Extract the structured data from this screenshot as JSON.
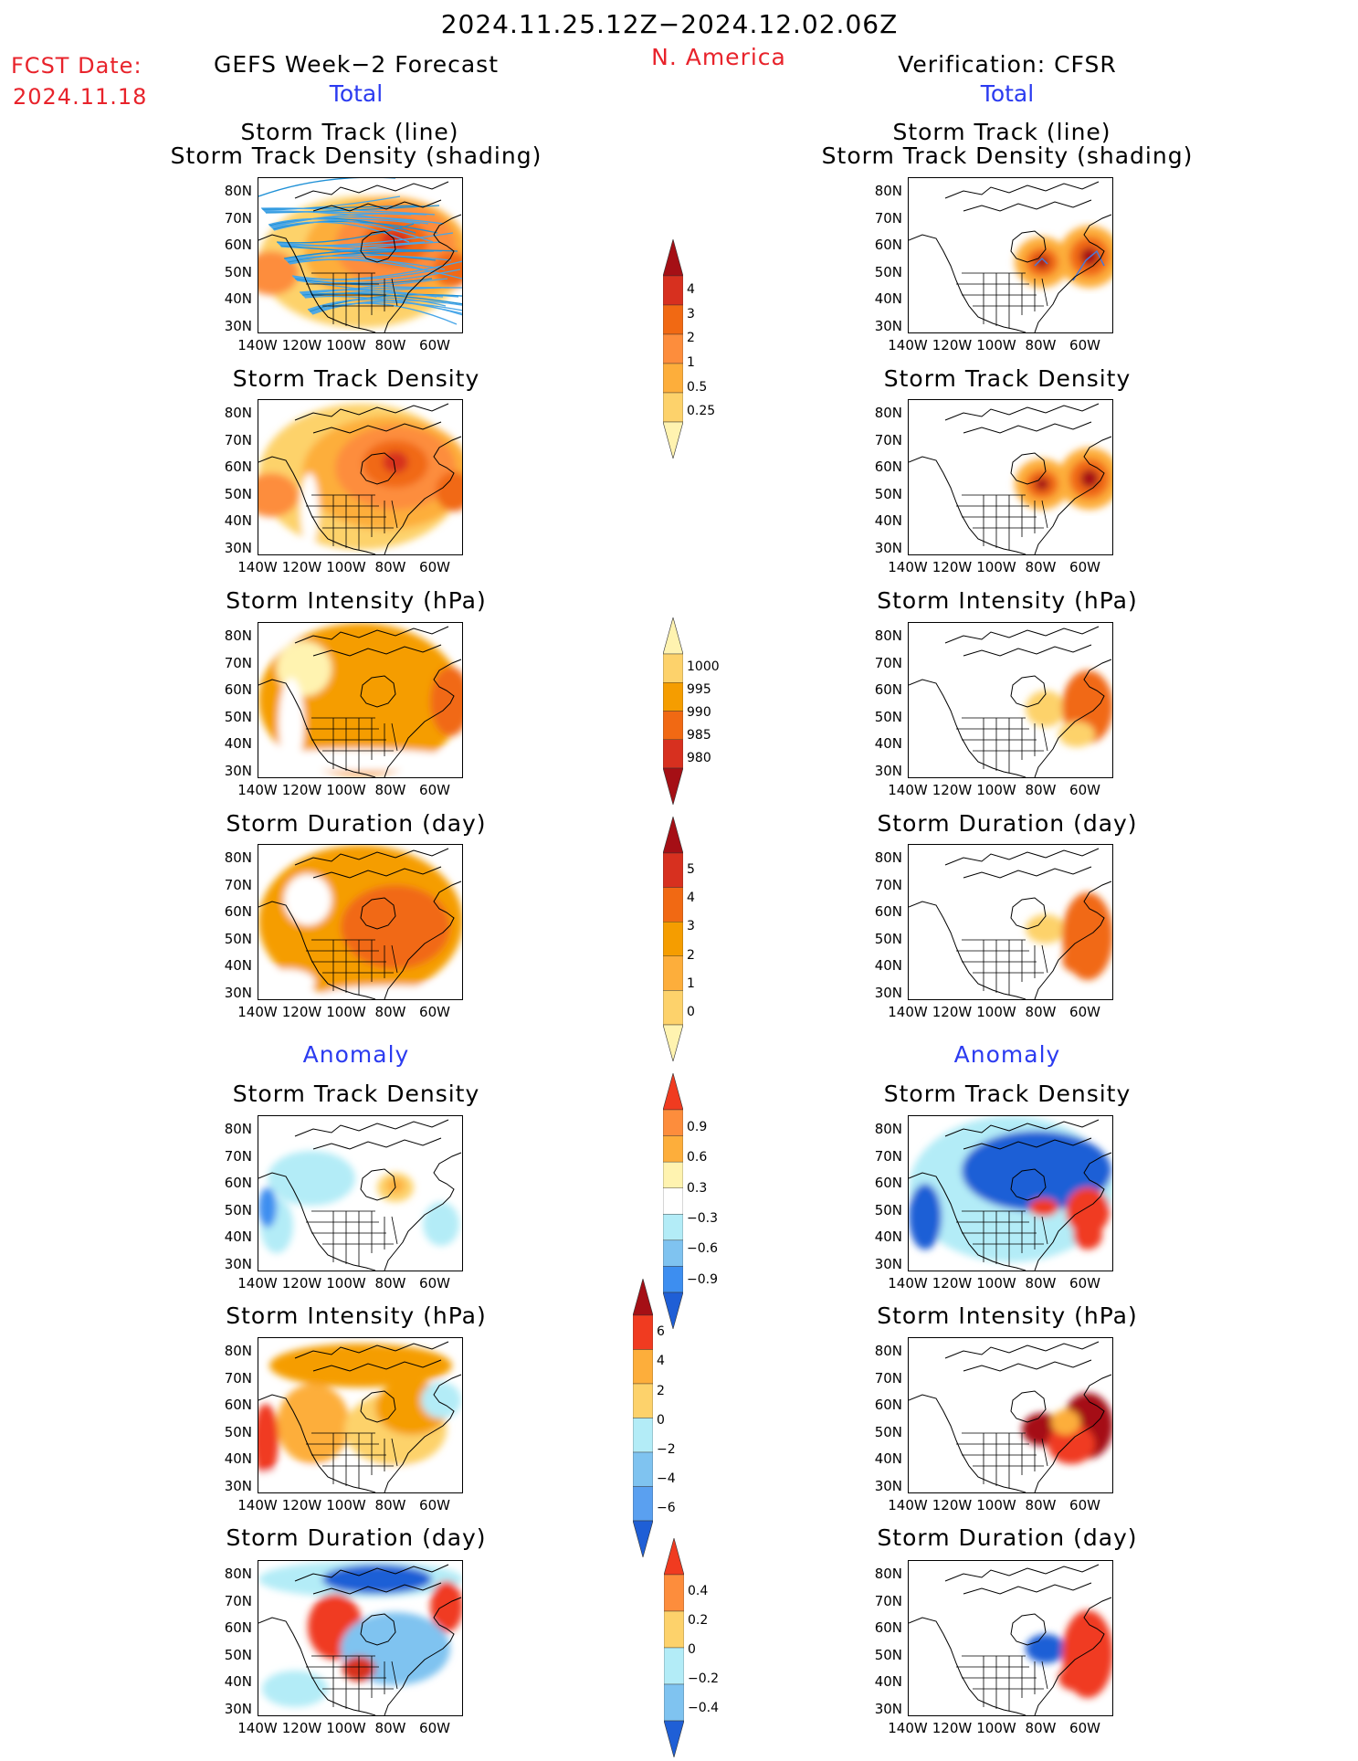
{
  "header": {
    "date_range": "2024.11.25.12Z−2024.12.02.06Z",
    "region": "N. America",
    "fcst_label": "FCST Date:",
    "fcst_date": "2024.11.18",
    "left_title": "GEFS Week−2 Forecast",
    "right_title": "Verification: CFSR",
    "total_left": "Total",
    "total_right": "Total",
    "anomaly_left": "Anomaly",
    "anomaly_right": "Anomaly"
  },
  "panel_titles": {
    "track_line": "Storm Track (line)",
    "track_density_shading": "Storm Track Density (shading)",
    "track_density": "Storm Track Density",
    "intensity": "Storm Intensity (hPa)",
    "duration": "Storm Duration (day)"
  },
  "axes": {
    "lat_labels": [
      "80N",
      "70N",
      "60N",
      "50N",
      "40N",
      "30N"
    ],
    "lon_labels": [
      "140W",
      "120W",
      "100W",
      "80W",
      "60W"
    ]
  },
  "colorbars": [
    {
      "id": "density_total",
      "labels": [
        "4",
        "3",
        "2",
        "1",
        "0.5",
        "0.25"
      ],
      "colors": [
        "#a50f15",
        "#d7301f",
        "#f16913",
        "#fd8d3c",
        "#fdae3b",
        "#fdd26b",
        "#fff3b0"
      ]
    },
    {
      "id": "intensity_total",
      "labels": [
        "1000",
        "995",
        "990",
        "985",
        "980"
      ],
      "colors": [
        "#fff3b0",
        "#fdd26b",
        "#f59d00",
        "#f16913",
        "#d7301f",
        "#a50f15"
      ]
    },
    {
      "id": "duration_total",
      "labels": [
        "5",
        "4",
        "3",
        "2",
        "1",
        "0"
      ],
      "colors": [
        "#a50f15",
        "#d7301f",
        "#f16913",
        "#f59d00",
        "#fdae3b",
        "#fdd26b",
        "#fff3b0"
      ]
    },
    {
      "id": "density_anom",
      "labels": [
        "0.9",
        "0.6",
        "0.3",
        "−0.3",
        "−0.6",
        "−0.9"
      ],
      "colors": [
        "#f03b20",
        "#fd8d3c",
        "#fdae3b",
        "#fff3b0",
        "#ffffff",
        "#b3ecf7",
        "#7fc3f0",
        "#3d8ef0",
        "#1f5fd6"
      ]
    },
    {
      "id": "intensity_anom",
      "labels": [
        "6",
        "4",
        "2",
        "0",
        "−2",
        "−4",
        "−6"
      ],
      "colors": [
        "#a50f15",
        "#f03b20",
        "#fdae3b",
        "#fdd26b",
        "#b3ecf7",
        "#7fc3f0",
        "#5aa0f0",
        "#1f5fd6"
      ]
    },
    {
      "id": "duration_anom",
      "labels": [
        "0.4",
        "0.2",
        "0",
        "−0.2",
        "−0.4"
      ],
      "colors": [
        "#f03b20",
        "#fd8d3c",
        "#fdd26b",
        "#b3ecf7",
        "#7fc3f0",
        "#1f5fd6"
      ]
    }
  ]
}
